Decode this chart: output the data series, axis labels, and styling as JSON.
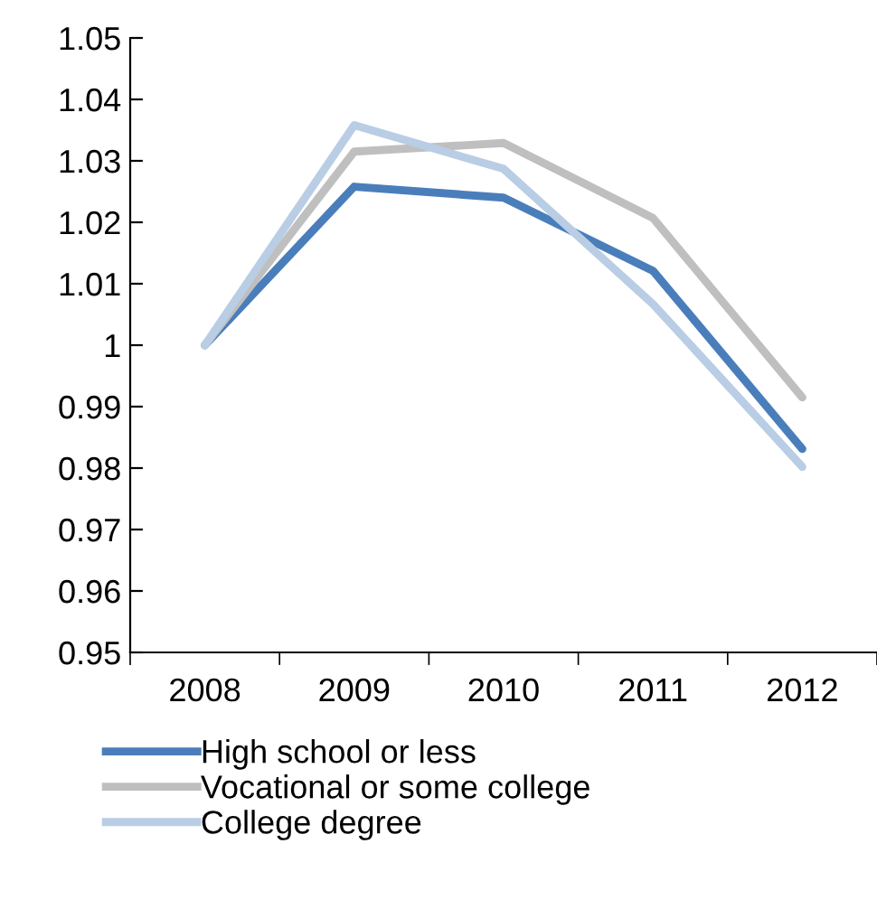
{
  "chart_data": {
    "type": "line",
    "categories": [
      "2008",
      "2009",
      "2010",
      "2011",
      "2012"
    ],
    "series": [
      {
        "name": "High school or less",
        "color": "#4a7ebb",
        "values": [
          1.0,
          1.0258,
          1.024,
          1.0121,
          0.9831
        ]
      },
      {
        "name": "Vocational or some college",
        "color": "#bfbfbf",
        "values": [
          1.0,
          1.0315,
          1.0329,
          1.0207,
          0.9915
        ]
      },
      {
        "name": "College degree",
        "color": "#b9cde5",
        "values": [
          1.0,
          1.0358,
          1.0287,
          1.0067,
          0.9802
        ]
      }
    ],
    "ylim": [
      0.95,
      1.05
    ],
    "yticks": [
      0.95,
      0.96,
      0.97,
      0.98,
      0.99,
      1,
      1.01,
      1.02,
      1.03,
      1.04,
      1.05
    ],
    "grid": false,
    "legend": "bottom",
    "marker": "none",
    "line_style": "solid"
  }
}
